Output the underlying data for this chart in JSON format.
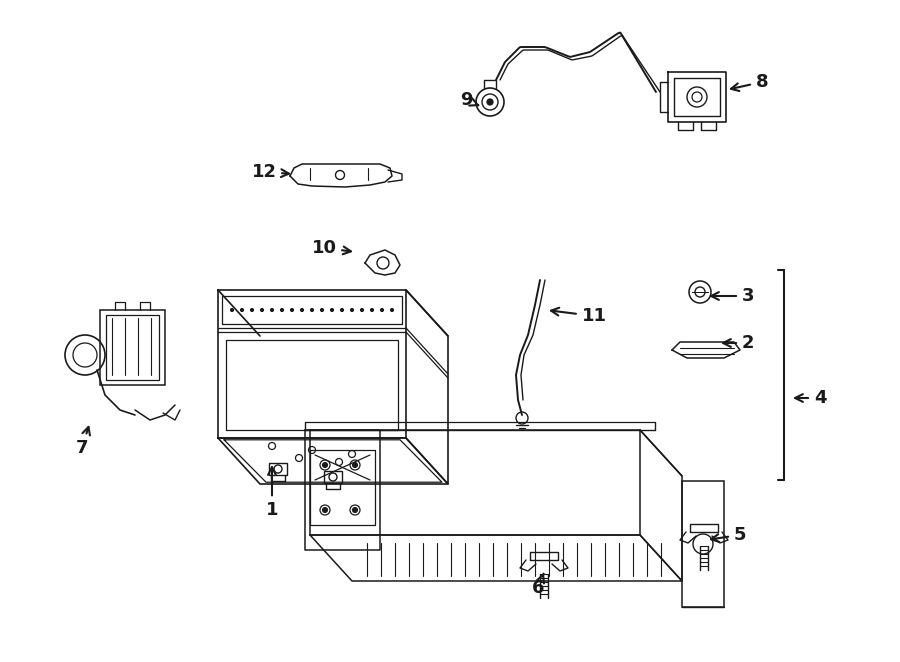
{
  "bg_color": "#ffffff",
  "line_color": "#1a1a1a",
  "fig_width": 9.0,
  "fig_height": 6.62,
  "dpi": 100,
  "labels": [
    [
      1,
      272,
      510,
      272,
      462
    ],
    [
      2,
      748,
      343,
      718,
      343
    ],
    [
      3,
      748,
      296,
      706,
      296
    ],
    [
      4,
      820,
      398,
      790,
      398
    ],
    [
      5,
      740,
      535,
      706,
      540
    ],
    [
      6,
      538,
      588,
      545,
      570
    ],
    [
      7,
      82,
      448,
      90,
      422
    ],
    [
      8,
      762,
      82,
      726,
      90
    ],
    [
      9,
      466,
      100,
      480,
      106
    ],
    [
      10,
      324,
      248,
      356,
      252
    ],
    [
      11,
      594,
      316,
      546,
      310
    ],
    [
      12,
      264,
      172,
      294,
      174
    ]
  ]
}
